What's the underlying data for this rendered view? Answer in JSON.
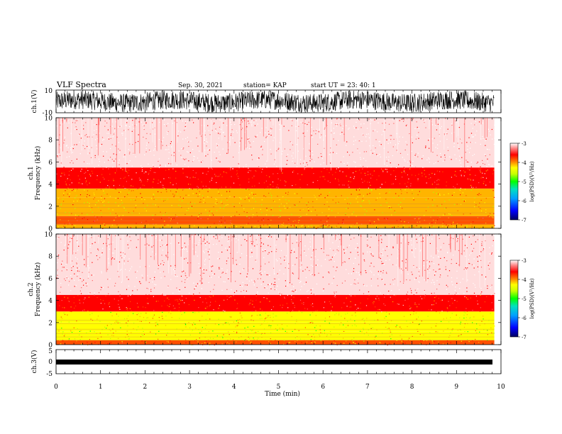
{
  "header": {
    "title": "VLF Spectra",
    "date": "Sep. 30, 2021",
    "station": "station= KAP",
    "start": "start  UT =   23: 40: 1"
  },
  "chart_data": [
    {
      "type": "line",
      "panel": "ch1-waveform",
      "ylabel": "ch.1(V)",
      "ylim": [
        -10,
        10
      ],
      "yticks": [
        "10",
        "-10"
      ],
      "xlim": [
        0,
        10
      ],
      "color": "#000000",
      "description_values": {
        "mean": 0,
        "approx_amplitude": 5
      }
    },
    {
      "type": "heatmap",
      "panel": "ch1-spectrogram",
      "ylabel": "ch.1\nFrequency  (kHz)",
      "ylabel_line1": "ch.1",
      "ylabel_line2": "Frequency  (kHz)",
      "ylim": [
        0,
        10
      ],
      "yticks": [
        "0",
        "2",
        "4",
        "6",
        "8",
        "10"
      ],
      "xlim": [
        0,
        9.85
      ],
      "bands_khz": [
        {
          "from": 0.0,
          "to": 0.35,
          "level": -4.6
        },
        {
          "from": 0.35,
          "to": 1.1,
          "level": -4.3
        },
        {
          "from": 1.1,
          "to": 2.8,
          "level": -4.8
        },
        {
          "from": 2.8,
          "to": 3.6,
          "level": -4.6
        },
        {
          "from": 3.6,
          "to": 5.5,
          "level": -4.0
        },
        {
          "from": 5.5,
          "to": 10.0,
          "level": -3.3
        }
      ],
      "colorbar": {
        "label": "log(PSD)(V²/Hz)",
        "range": [
          -7,
          -3
        ],
        "ticks": [
          "-3",
          "-4",
          "-5",
          "-6",
          "-7"
        ]
      }
    },
    {
      "type": "heatmap",
      "panel": "ch2-spectrogram",
      "ylabel_line1": "ch.2",
      "ylabel_line2": "Frequency  (kHz)",
      "ylim": [
        0,
        10
      ],
      "yticks": [
        "0",
        "2",
        "4",
        "6",
        "8",
        "10"
      ],
      "xlim": [
        0,
        9.85
      ],
      "bands_khz": [
        {
          "from": 0.0,
          "to": 0.4,
          "level": -4.5
        },
        {
          "from": 0.4,
          "to": 1.2,
          "level": -4.9
        },
        {
          "from": 1.2,
          "to": 2.0,
          "level": -5.1
        },
        {
          "from": 2.0,
          "to": 3.0,
          "level": -4.9
        },
        {
          "from": 3.0,
          "to": 4.5,
          "level": -4.0
        },
        {
          "from": 4.5,
          "to": 10.0,
          "level": -3.4
        }
      ],
      "colorbar": {
        "label": "log(PSD)(V²/Hz)",
        "range": [
          -7,
          -3
        ],
        "ticks": [
          "-3",
          "-4",
          "-5",
          "-6",
          "-7"
        ]
      }
    },
    {
      "type": "line",
      "panel": "ch3-waveform",
      "ylabel": "ch.3(V)",
      "ylim": [
        -5,
        5
      ],
      "yticks": [
        "5",
        "0",
        "-5"
      ],
      "xlim": [
        0,
        10
      ],
      "approx_level": 0,
      "color": "#000000"
    }
  ],
  "xaxis": {
    "label": "Time  (min)",
    "ticks": [
      "0",
      "1",
      "2",
      "3",
      "4",
      "5",
      "6",
      "7",
      "8",
      "9",
      "10"
    ],
    "range": [
      0,
      10
    ]
  },
  "colors": {
    "colormap": [
      "#000080",
      "#0000ff",
      "#0096ff",
      "#00dcdc",
      "#00ff00",
      "#b4ff00",
      "#ffff00",
      "#ffb400",
      "#ff5000",
      "#ff0000",
      "#ff6464",
      "#ffdcdc",
      "#ffffff"
    ]
  }
}
